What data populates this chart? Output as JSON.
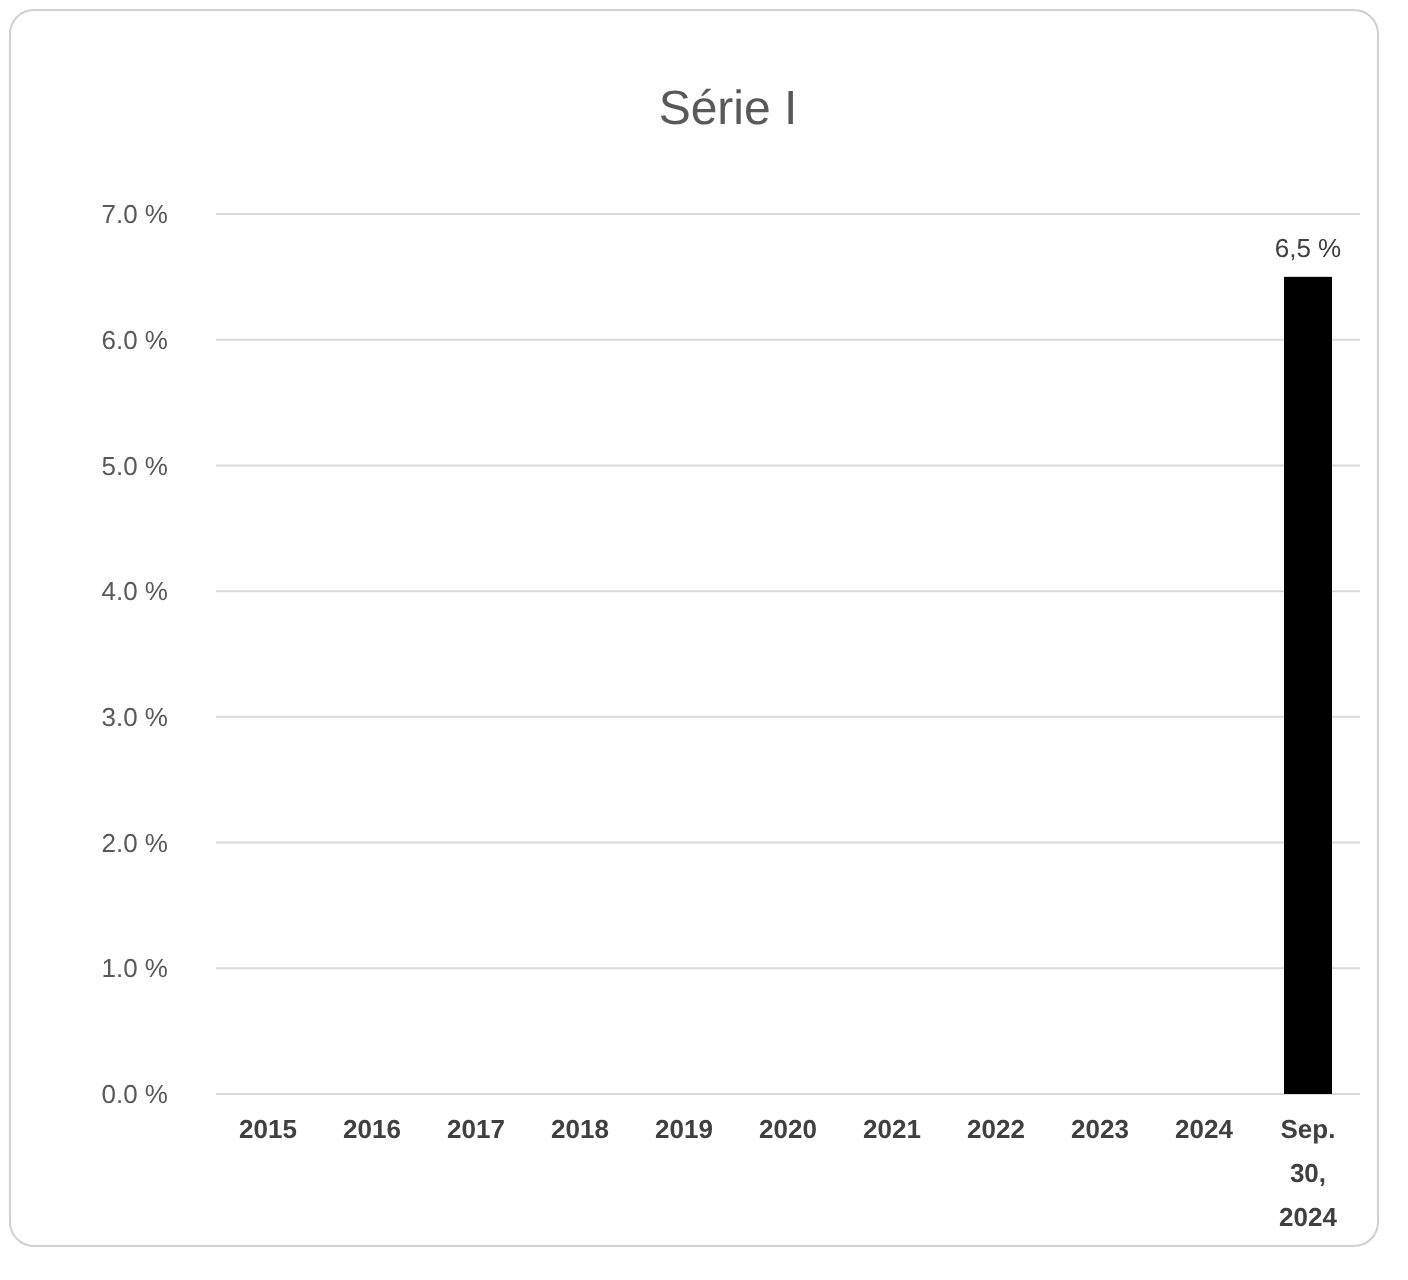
{
  "chart_data": {
    "type": "bar",
    "title": "Série I",
    "categories": [
      "2015",
      "2016",
      "2017",
      "2018",
      "2019",
      "2020",
      "2021",
      "2022",
      "2023",
      "2024",
      "Sep. 30, 2024"
    ],
    "values": [
      null,
      null,
      null,
      null,
      null,
      null,
      null,
      null,
      null,
      null,
      6.5
    ],
    "value_labels": [
      null,
      null,
      null,
      null,
      null,
      null,
      null,
      null,
      null,
      null,
      "6,5 %"
    ],
    "color": "#000000",
    "ylim": [
      0,
      7
    ],
    "yticks": [
      {
        "value": 0,
        "label": "0.0 %"
      },
      {
        "value": 1,
        "label": "1.0 %"
      },
      {
        "value": 2,
        "label": "2.0 %"
      },
      {
        "value": 3,
        "label": "3.0 %"
      },
      {
        "value": 4,
        "label": "4.0 %"
      },
      {
        "value": 5,
        "label": "5.0 %"
      },
      {
        "value": 6,
        "label": "6.0 %"
      },
      {
        "value": 7,
        "label": "7.0 %"
      }
    ],
    "grid": "y"
  }
}
